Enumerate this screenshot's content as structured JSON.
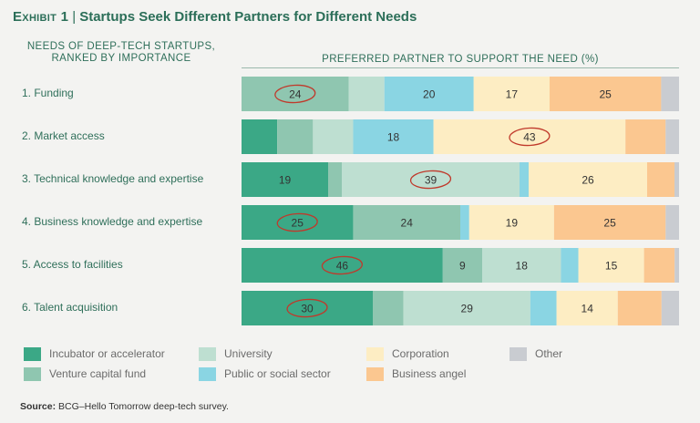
{
  "header": {
    "exhibit": "Exhibit 1",
    "separator": "|",
    "title": "Startups Seek Different Partners for Different Needs"
  },
  "needs_heading": [
    "NEEDS OF DEEP-TECH STARTUPS,",
    "RANKED BY IMPORTANCE"
  ],
  "partner_heading": "PREFERRED PARTNER TO SUPPORT THE NEED (%)",
  "chart_data": {
    "type": "bar",
    "orientation": "horizontal",
    "stacked": true,
    "xlim": [
      0,
      100
    ],
    "categories": [
      "1. Funding",
      "2. Market access",
      "3. Technical knowledge and expertise",
      "4. Business knowledge and expertise",
      "5. Access to facilities",
      "6. Talent acquisition"
    ],
    "series": [
      {
        "name": "Incubator or accelerator",
        "color": "#3ba886",
        "values": [
          0,
          8,
          19,
          25,
          46,
          30
        ],
        "labels": [
          "",
          "",
          "19",
          "25",
          "46",
          "30"
        ]
      },
      {
        "name": "Venture capital fund",
        "color": "#8fc6b0",
        "values": [
          24,
          8,
          3,
          24,
          9,
          7
        ],
        "labels": [
          "24",
          "",
          "",
          "24",
          "9",
          ""
        ]
      },
      {
        "name": "University",
        "color": "#bedfd1",
        "values": [
          8,
          9,
          39,
          0,
          18,
          29
        ],
        "labels": [
          "",
          "",
          "39",
          "",
          "18",
          "29"
        ]
      },
      {
        "name": "Public or social sector",
        "color": "#8ad5e3",
        "values": [
          20,
          18,
          2,
          2,
          4,
          6
        ],
        "labels": [
          "20",
          "18",
          "",
          "",
          "",
          ""
        ]
      },
      {
        "name": "Corporation",
        "color": "#fdedc3",
        "values": [
          17,
          43,
          26,
          19,
          15,
          14
        ],
        "labels": [
          "17",
          "43",
          "26",
          "19",
          "15",
          "14"
        ]
      },
      {
        "name": "Business angel",
        "color": "#fbc790",
        "values": [
          25,
          9,
          6,
          25,
          7,
          10
        ],
        "labels": [
          "25",
          "",
          "",
          "25",
          "",
          ""
        ]
      },
      {
        "name": "Other",
        "color": "#c9ccd1",
        "values": [
          4,
          3,
          1,
          3,
          1,
          4
        ],
        "labels": [
          "",
          "",
          "",
          "",
          "",
          ""
        ]
      }
    ],
    "circled": [
      {
        "category": 0,
        "series": 1
      },
      {
        "category": 1,
        "series": 4
      },
      {
        "category": 2,
        "series": 2
      },
      {
        "category": 3,
        "series": 0
      },
      {
        "category": 4,
        "series": 0
      },
      {
        "category": 5,
        "series": 0
      }
    ],
    "circle_color": "#c0392b",
    "legend_position": "bottom"
  },
  "source": {
    "label": "Source:",
    "text": "BCG–Hello Tomorrow deep-tech survey."
  }
}
